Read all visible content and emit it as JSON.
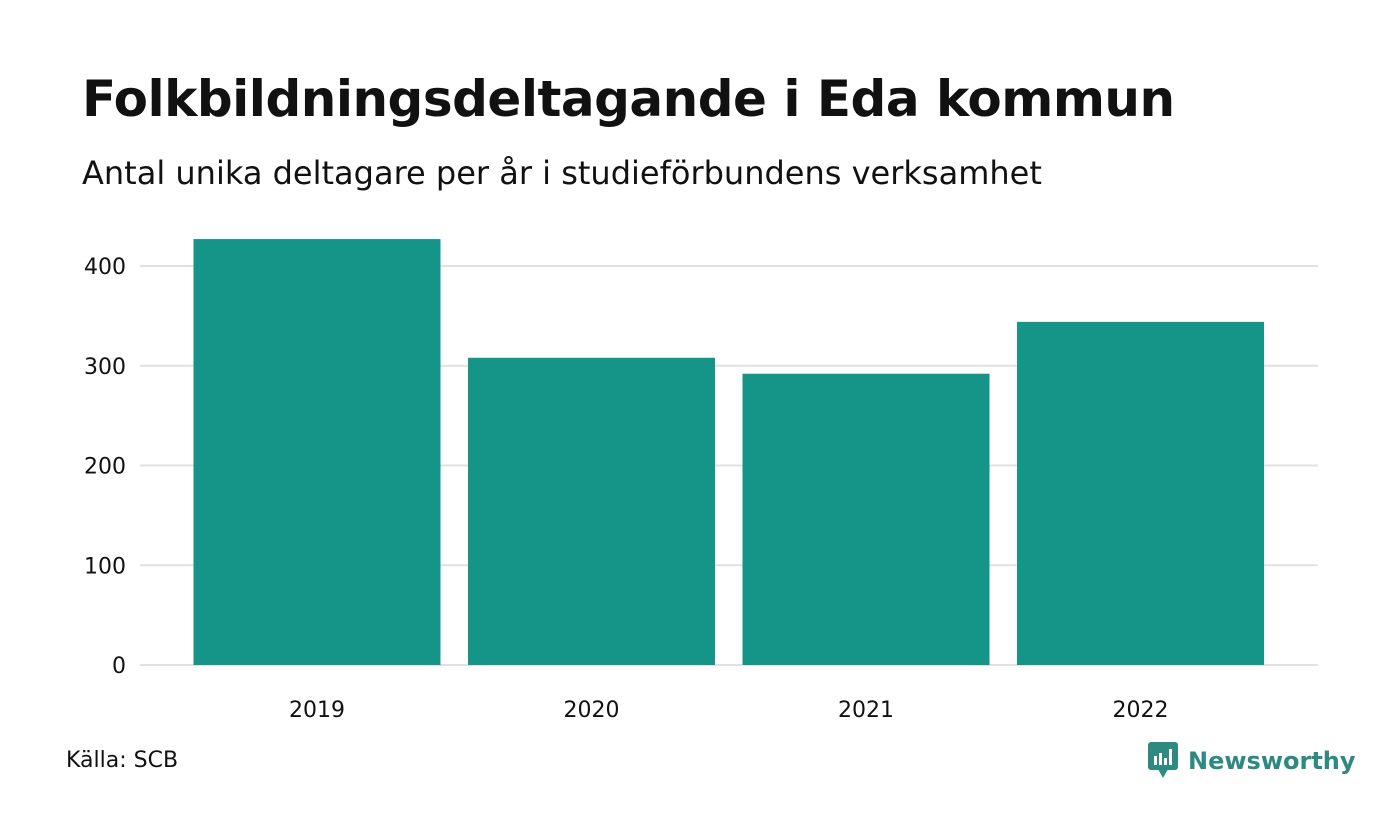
{
  "header": {
    "title": "Folkbildningsdeltagande i Eda kommun",
    "subtitle": "Antal unika deltagare per år i studieförbundens verksamhet"
  },
  "footer": {
    "source": "Källa: SCB",
    "brand": "Newsworthy",
    "brand_icon": "newsworthy-logo-icon"
  },
  "colors": {
    "bar": "#149587",
    "grid": "#e1e1e1",
    "brand": "#2e8a80"
  },
  "chart_data": {
    "type": "bar",
    "title": "Folkbildningsdeltagande i Eda kommun",
    "subtitle": "Antal unika deltagare per år i studieförbundens verksamhet",
    "categories": [
      "2019",
      "2020",
      "2021",
      "2022"
    ],
    "values": [
      427,
      308,
      292,
      344
    ],
    "xlabel": "",
    "ylabel": "",
    "ylim": [
      0,
      440
    ],
    "yticks": [
      0,
      100,
      200,
      300,
      400
    ],
    "grid": "horizontal",
    "legend": "none"
  }
}
